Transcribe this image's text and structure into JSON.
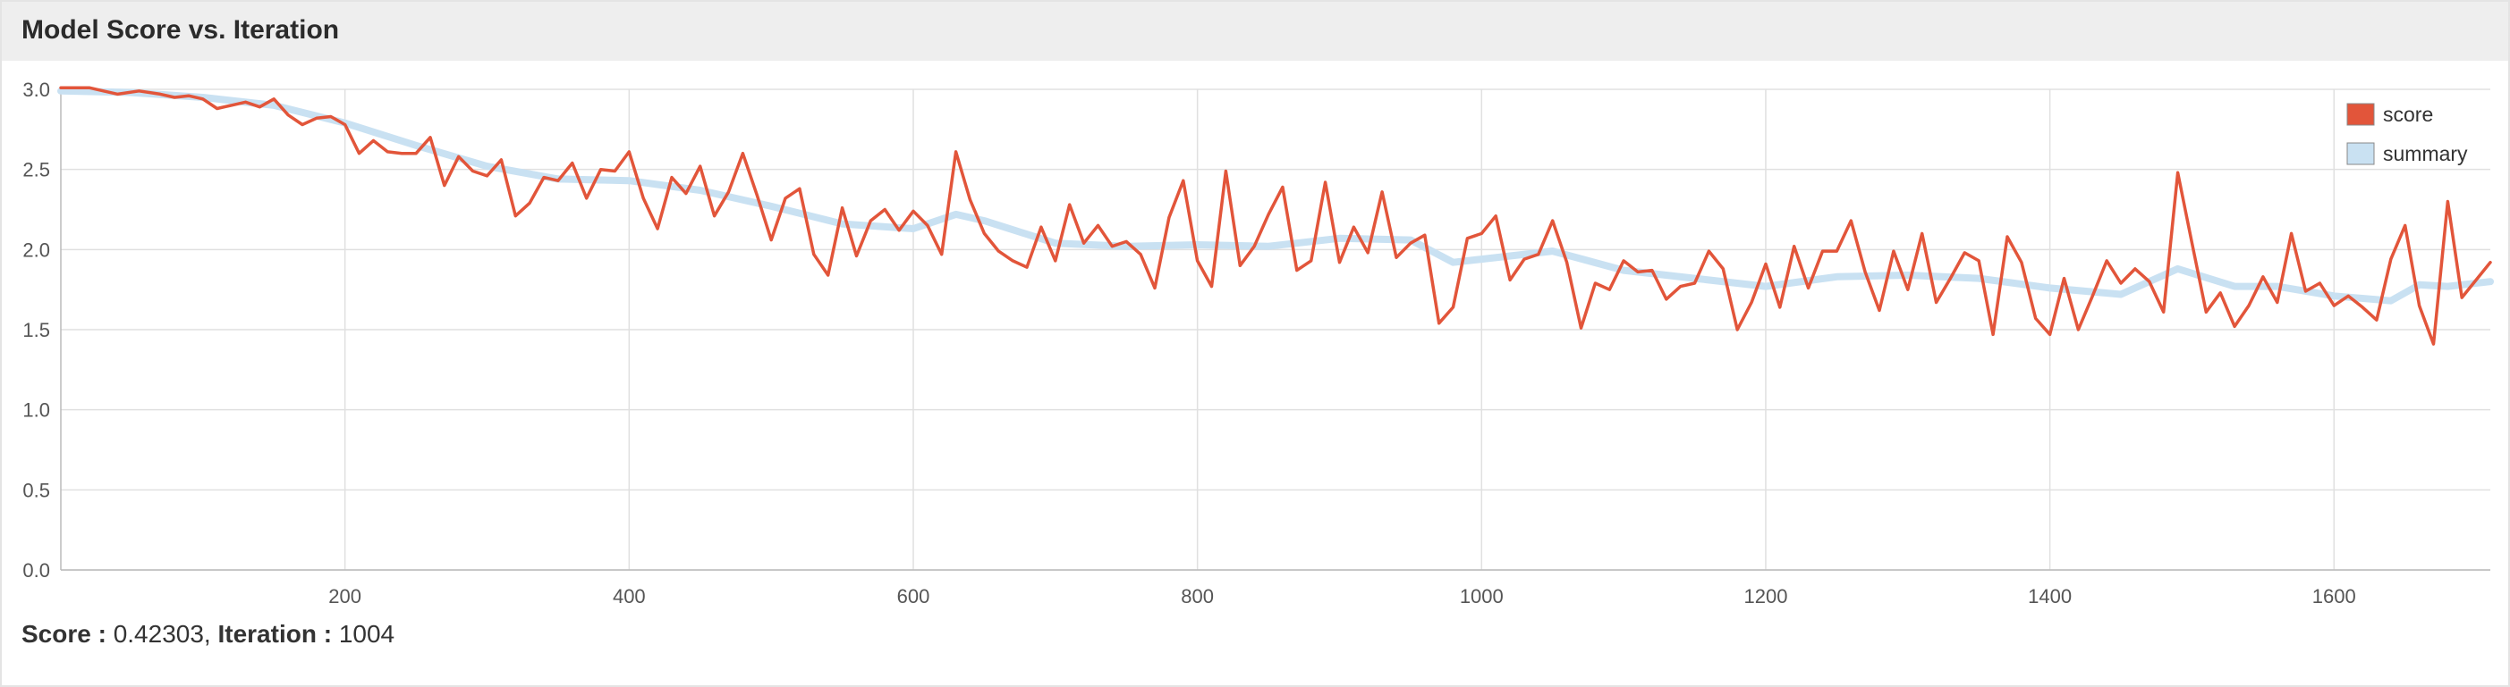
{
  "panel": {
    "title": "Model Score vs. Iteration"
  },
  "status": {
    "score_label": "Score : ",
    "score_value": "0.42303",
    "separator": ", ",
    "iteration_label": "Iteration : ",
    "iteration_value": "1004"
  },
  "colors": {
    "score": "#e2553a",
    "summary": "#c9e1f2",
    "grid": "#e0e0e0",
    "axis": "#bbbbbb"
  },
  "chart_data": {
    "type": "line",
    "xlim": [
      0,
      1710
    ],
    "ylim": [
      0.0,
      3.0
    ],
    "x_ticks": [
      200,
      400,
      600,
      800,
      1000,
      1200,
      1400,
      1600
    ],
    "y_ticks": [
      "0.0",
      "0.5",
      "1.0",
      "1.5",
      "2.0",
      "2.5",
      "3.0"
    ],
    "grid": true,
    "legend_position": "top-right",
    "series": [
      {
        "name": "score",
        "points": [
          [
            0,
            3.01
          ],
          [
            20,
            3.01
          ],
          [
            30,
            2.99
          ],
          [
            40,
            2.97
          ],
          [
            55,
            2.99
          ],
          [
            70,
            2.97
          ],
          [
            80,
            2.95
          ],
          [
            90,
            2.96
          ],
          [
            100,
            2.94
          ],
          [
            110,
            2.88
          ],
          [
            120,
            2.9
          ],
          [
            130,
            2.92
          ],
          [
            140,
            2.89
          ],
          [
            150,
            2.94
          ],
          [
            160,
            2.84
          ],
          [
            170,
            2.78
          ],
          [
            180,
            2.82
          ],
          [
            190,
            2.83
          ],
          [
            200,
            2.78
          ],
          [
            210,
            2.6
          ],
          [
            220,
            2.68
          ],
          [
            230,
            2.61
          ],
          [
            240,
            2.6
          ],
          [
            250,
            2.6
          ],
          [
            260,
            2.7
          ],
          [
            270,
            2.4
          ],
          [
            280,
            2.58
          ],
          [
            290,
            2.49
          ],
          [
            300,
            2.46
          ],
          [
            310,
            2.56
          ],
          [
            320,
            2.21
          ],
          [
            330,
            2.29
          ],
          [
            340,
            2.45
          ],
          [
            350,
            2.43
          ],
          [
            360,
            2.54
          ],
          [
            370,
            2.32
          ],
          [
            380,
            2.5
          ],
          [
            390,
            2.49
          ],
          [
            400,
            2.61
          ],
          [
            410,
            2.32
          ],
          [
            420,
            2.13
          ],
          [
            430,
            2.45
          ],
          [
            440,
            2.35
          ],
          [
            450,
            2.52
          ],
          [
            460,
            2.21
          ],
          [
            470,
            2.36
          ],
          [
            480,
            2.6
          ],
          [
            490,
            2.34
          ],
          [
            500,
            2.06
          ],
          [
            510,
            2.32
          ],
          [
            520,
            2.38
          ],
          [
            530,
            1.97
          ],
          [
            540,
            1.84
          ],
          [
            550,
            2.26
          ],
          [
            560,
            1.96
          ],
          [
            570,
            2.18
          ],
          [
            580,
            2.25
          ],
          [
            590,
            2.12
          ],
          [
            600,
            2.24
          ],
          [
            610,
            2.15
          ],
          [
            620,
            1.97
          ],
          [
            630,
            2.61
          ],
          [
            640,
            2.31
          ],
          [
            650,
            2.1
          ],
          [
            660,
            1.99
          ],
          [
            670,
            1.93
          ],
          [
            680,
            1.89
          ],
          [
            690,
            2.14
          ],
          [
            700,
            1.93
          ],
          [
            710,
            2.28
          ],
          [
            720,
            2.04
          ],
          [
            730,
            2.15
          ],
          [
            740,
            2.02
          ],
          [
            750,
            2.05
          ],
          [
            760,
            1.97
          ],
          [
            770,
            1.76
          ],
          [
            780,
            2.2
          ],
          [
            790,
            2.43
          ],
          [
            800,
            1.93
          ],
          [
            810,
            1.77
          ],
          [
            820,
            2.49
          ],
          [
            830,
            1.9
          ],
          [
            840,
            2.02
          ],
          [
            850,
            2.22
          ],
          [
            860,
            2.39
          ],
          [
            870,
            1.87
          ],
          [
            880,
            1.93
          ],
          [
            890,
            2.42
          ],
          [
            900,
            1.92
          ],
          [
            910,
            2.14
          ],
          [
            920,
            1.98
          ],
          [
            930,
            2.36
          ],
          [
            940,
            1.95
          ],
          [
            950,
            2.04
          ],
          [
            960,
            2.09
          ],
          [
            970,
            1.54
          ],
          [
            980,
            1.64
          ],
          [
            990,
            2.07
          ],
          [
            1000,
            2.1
          ],
          [
            1010,
            2.21
          ],
          [
            1020,
            1.81
          ],
          [
            1030,
            1.94
          ],
          [
            1040,
            1.97
          ],
          [
            1050,
            2.18
          ],
          [
            1060,
            1.92
          ],
          [
            1070,
            1.51
          ],
          [
            1080,
            1.79
          ],
          [
            1090,
            1.75
          ],
          [
            1100,
            1.93
          ],
          [
            1110,
            1.86
          ],
          [
            1120,
            1.87
          ],
          [
            1130,
            1.69
          ],
          [
            1140,
            1.77
          ],
          [
            1150,
            1.79
          ],
          [
            1160,
            1.99
          ],
          [
            1170,
            1.88
          ],
          [
            1180,
            1.5
          ],
          [
            1190,
            1.67
          ],
          [
            1200,
            1.91
          ],
          [
            1210,
            1.64
          ],
          [
            1220,
            2.02
          ],
          [
            1230,
            1.76
          ],
          [
            1240,
            1.99
          ],
          [
            1250,
            1.99
          ],
          [
            1260,
            2.18
          ],
          [
            1270,
            1.86
          ],
          [
            1280,
            1.62
          ],
          [
            1290,
            1.99
          ],
          [
            1300,
            1.75
          ],
          [
            1310,
            2.1
          ],
          [
            1320,
            1.67
          ],
          [
            1330,
            1.82
          ],
          [
            1340,
            1.98
          ],
          [
            1350,
            1.93
          ],
          [
            1360,
            1.47
          ],
          [
            1370,
            2.08
          ],
          [
            1380,
            1.92
          ],
          [
            1390,
            1.57
          ],
          [
            1400,
            1.47
          ],
          [
            1410,
            1.82
          ],
          [
            1420,
            1.5
          ],
          [
            1430,
            1.71
          ],
          [
            1440,
            1.93
          ],
          [
            1450,
            1.79
          ],
          [
            1460,
            1.88
          ],
          [
            1470,
            1.8
          ],
          [
            1480,
            1.61
          ],
          [
            1490,
            2.48
          ],
          [
            1500,
            2.04
          ],
          [
            1510,
            1.61
          ],
          [
            1520,
            1.73
          ],
          [
            1530,
            1.52
          ],
          [
            1540,
            1.65
          ],
          [
            1550,
            1.83
          ],
          [
            1560,
            1.67
          ],
          [
            1570,
            2.1
          ],
          [
            1580,
            1.74
          ],
          [
            1590,
            1.79
          ],
          [
            1600,
            1.65
          ],
          [
            1610,
            1.71
          ],
          [
            1620,
            1.64
          ],
          [
            1630,
            1.56
          ],
          [
            1640,
            1.94
          ],
          [
            1650,
            2.15
          ],
          [
            1660,
            1.65
          ],
          [
            1670,
            1.41
          ],
          [
            1680,
            2.3
          ],
          [
            1690,
            1.7
          ],
          [
            1700,
            1.81
          ],
          [
            1710,
            1.92
          ]
        ]
      },
      {
        "name": "summary",
        "points": [
          [
            0,
            2.99
          ],
          [
            50,
            2.98
          ],
          [
            100,
            2.95
          ],
          [
            150,
            2.9
          ],
          [
            200,
            2.79
          ],
          [
            250,
            2.65
          ],
          [
            300,
            2.52
          ],
          [
            350,
            2.44
          ],
          [
            400,
            2.43
          ],
          [
            450,
            2.37
          ],
          [
            500,
            2.27
          ],
          [
            550,
            2.16
          ],
          [
            600,
            2.13
          ],
          [
            630,
            2.22
          ],
          [
            650,
            2.18
          ],
          [
            700,
            2.04
          ],
          [
            750,
            2.02
          ],
          [
            800,
            2.03
          ],
          [
            850,
            2.02
          ],
          [
            900,
            2.07
          ],
          [
            950,
            2.06
          ],
          [
            980,
            1.92
          ],
          [
            1000,
            1.94
          ],
          [
            1050,
            1.99
          ],
          [
            1100,
            1.87
          ],
          [
            1150,
            1.82
          ],
          [
            1200,
            1.77
          ],
          [
            1250,
            1.83
          ],
          [
            1300,
            1.84
          ],
          [
            1350,
            1.82
          ],
          [
            1400,
            1.76
          ],
          [
            1450,
            1.72
          ],
          [
            1490,
            1.88
          ],
          [
            1530,
            1.77
          ],
          [
            1560,
            1.77
          ],
          [
            1600,
            1.71
          ],
          [
            1640,
            1.68
          ],
          [
            1660,
            1.78
          ],
          [
            1680,
            1.77
          ],
          [
            1710,
            1.8
          ]
        ]
      }
    ]
  }
}
